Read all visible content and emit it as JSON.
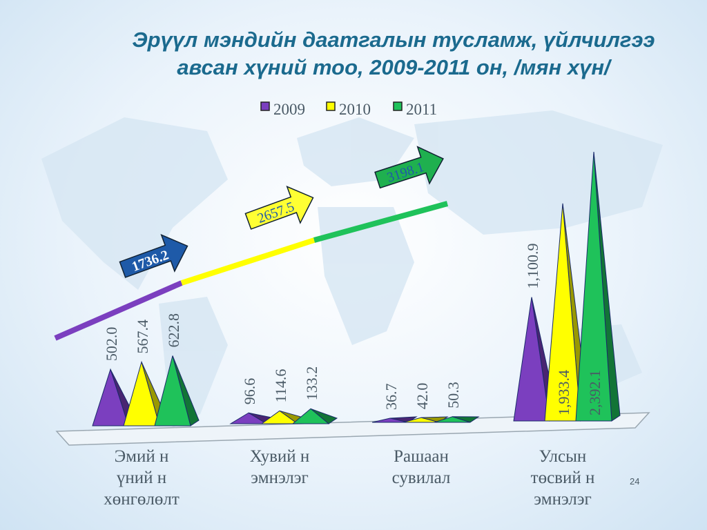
{
  "chart_data": {
    "type": "pyramid-bar",
    "title": "Эрүүл мэндийн даатгалын тусламж, үйлчилгээ",
    "subtitle": "авсан хүний тоо, 2009-2011 он, /мян хүн/",
    "categories": [
      "Эмий н\nүний н\nхөнгөлөлт",
      "Хувий н\nэмнэлэг",
      "Рашаан\nсувилал",
      "Улсын\nтөсвий н\nэмнэлэг"
    ],
    "series": [
      {
        "name": "2009",
        "color": "#7b3fbf",
        "values": [
          502.0,
          96.6,
          36.7,
          1100.9
        ],
        "value_labels": [
          "502.0",
          "96.6",
          "36.7",
          "1,100.9"
        ],
        "total": 1736.2
      },
      {
        "name": "2010",
        "color": "#ffff00",
        "values": [
          567.4,
          114.6,
          42.0,
          1933.4
        ],
        "value_labels": [
          "567.4",
          "114.6",
          "42.0",
          "1,933.4"
        ],
        "total": 2657.5
      },
      {
        "name": "2011",
        "color": "#1fc25a",
        "values": [
          622.8,
          133.2,
          50.3,
          2392.1
        ],
        "value_labels": [
          "622.8",
          "133.2",
          "50.3",
          "2,392.1"
        ],
        "total": 3198.1
      }
    ],
    "legend": "top"
  },
  "page_number": "24"
}
